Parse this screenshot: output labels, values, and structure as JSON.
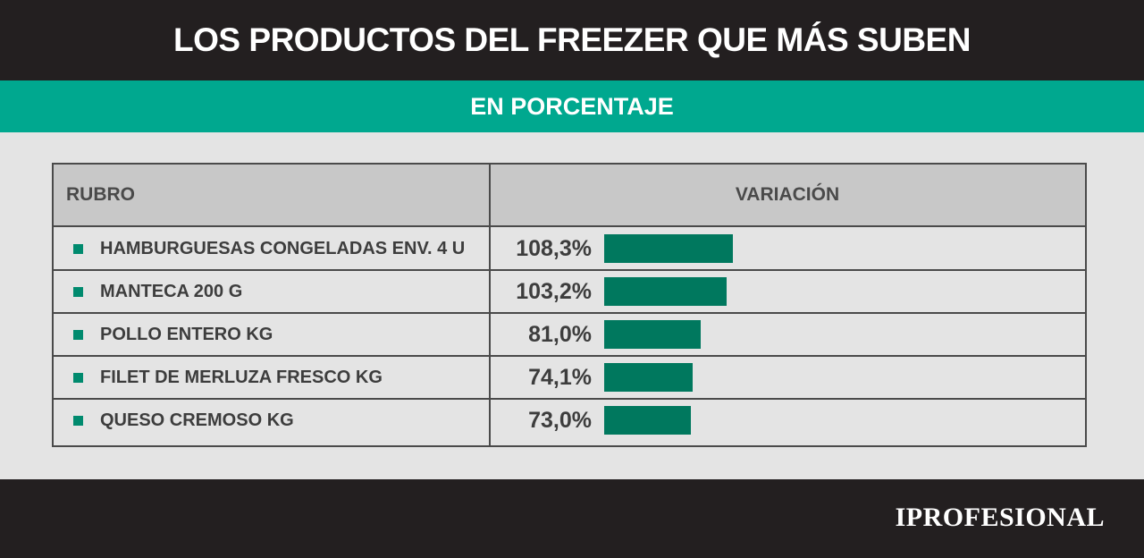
{
  "header": {
    "title": "LOS PRODUCTOS DEL FREEZER QUE MÁS SUBEN"
  },
  "subheader": {
    "title": "EN PORCENTAJE"
  },
  "table": {
    "col_rubro": "RUBRO",
    "col_variacion": "VARIACIÓN"
  },
  "chart_data": {
    "type": "bar",
    "categories": [
      "HAMBURGUESAS CONGELADAS ENV. 4 U",
      "MANTECA 200 G",
      "POLLO ENTERO KG",
      "FILET DE MERLUZA FRESCO KG",
      "QUESO CREMOSO KG"
    ],
    "values": [
      108.3,
      103.2,
      81.0,
      74.1,
      73.0
    ],
    "value_labels": [
      "108,3%",
      "103,2%",
      "81,0%",
      "74,1%",
      "73,0%"
    ],
    "title": "LOS PRODUCTOS DEL FREEZER QUE MÁS SUBEN",
    "subtitle": "EN PORCENTAJE",
    "xlabel": "RUBRO",
    "ylabel": "VARIACIÓN",
    "orientation": "horizontal",
    "grid": false,
    "bar_color": "#00785e"
  },
  "colors": {
    "header_bg": "#231f20",
    "subheader_bg": "#00a88f",
    "bar": "#00785e",
    "bullet": "#008a6e"
  },
  "footer": {
    "logo": "IPROFESIONAL"
  }
}
